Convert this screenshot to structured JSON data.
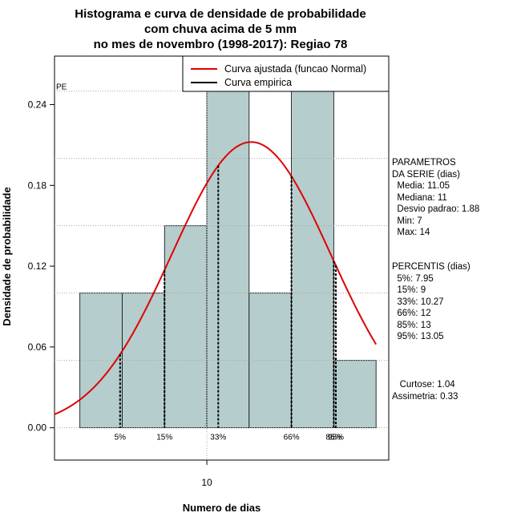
{
  "chart_data": {
    "type": "bar",
    "title_lines": [
      "Histograma e curva de densidade de probabilidade",
      "com chuva acima de 5 mm",
      "no mes de novembro (1998-2017): Regiao 78"
    ],
    "xlabel": "Numero de dias",
    "ylabel": "Densidade de probabilidade",
    "xlim": [
      6.4,
      14.3
    ],
    "ylim": [
      -0.024,
      0.276
    ],
    "x_ticks": [
      10
    ],
    "y_ticks": [
      "0.00",
      "0.06",
      "0.12",
      "0.18",
      "0.24"
    ],
    "bins": [
      {
        "left": 7,
        "right": 8,
        "density": 0.1
      },
      {
        "left": 8,
        "right": 9,
        "density": 0.1
      },
      {
        "left": 9,
        "right": 10,
        "density": 0.15
      },
      {
        "left": 10,
        "right": 11,
        "density": 0.25
      },
      {
        "left": 11,
        "right": 12,
        "density": 0.1
      },
      {
        "left": 12,
        "right": 13,
        "density": 0.25
      },
      {
        "left": 13,
        "right": 14,
        "density": 0.05
      }
    ],
    "normal_fit": {
      "mean": 11.05,
      "sd": 1.88,
      "x_from": 6.4,
      "x_to": 14.0
    },
    "hgrid": [
      0.0,
      0.05,
      0.1,
      0.15,
      0.2,
      0.25
    ],
    "vgrid": [
      10
    ],
    "percentiles": [
      {
        "label": "5%",
        "value": 7.95
      },
      {
        "label": "15%",
        "value": 9
      },
      {
        "label": "33%",
        "value": 10.27
      },
      {
        "label": "66%",
        "value": 12
      },
      {
        "label": "85%",
        "value": 13
      },
      {
        "label": "95%",
        "value": 13.05
      }
    ],
    "pe_label": "PE",
    "legend": {
      "position": "top-right",
      "items": [
        {
          "label": "Curva ajustada (funcao Normal)",
          "color": "#e00000"
        },
        {
          "label": "Curva empirica",
          "color": "#000000"
        }
      ]
    },
    "bar_color": "#b5cdcd",
    "curve_color": "#e00000"
  },
  "side_panel": {
    "params_text": "PARAMETROS\nDA SERIE (dias)\n  Media: 11.05\n  Mediana: 11\n  Desvio padrao: 1.88\n  Min: 7\n  Max: 14",
    "percentis_text": "PERCENTIS (dias)\n  5%: 7.95\n  15%: 9\n  33%: 10.27\n  66%: 12\n  85%: 13\n  95%: 13.05",
    "shape_text": "   Curtose: 1.04\nAssimetria: 0.33"
  }
}
